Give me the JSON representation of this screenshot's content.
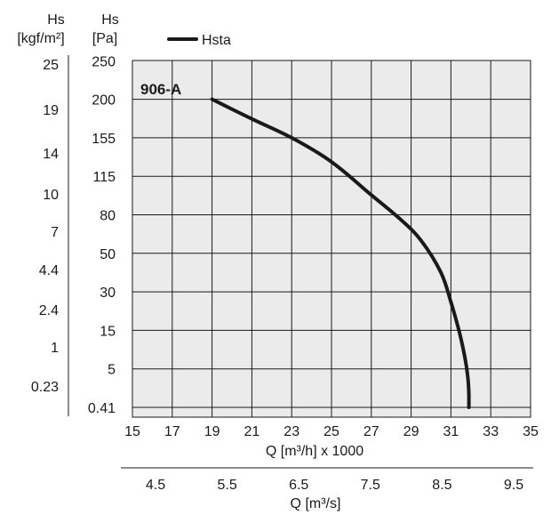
{
  "chart_data": {
    "type": "line",
    "model_label": "906-A",
    "x": {
      "label": "Q [m³/h] x 1000",
      "ticks": [
        15,
        17,
        19,
        21,
        23,
        25,
        27,
        29,
        31,
        33,
        35
      ],
      "range": [
        15,
        35
      ]
    },
    "x2": {
      "label": "Q [m³/s]",
      "ticks": [
        "4.5",
        "5.5",
        "6.5",
        "7.5",
        "8.5",
        "9.5"
      ]
    },
    "y": {
      "title": "Hs",
      "unit": "[Pa]",
      "scale": "nonuniform",
      "ticks": [
        "250",
        "200",
        "155",
        "115",
        "80",
        "50",
        "30",
        "15",
        "5",
        "0.41"
      ]
    },
    "y2": {
      "title": "Hs",
      "unit": "[kgf/m²]",
      "ticks": [
        "25",
        "19",
        "14",
        "10",
        "7",
        "4.4",
        "2.4",
        "1",
        "0.23"
      ]
    },
    "grid": true,
    "legend_position": "top-left",
    "series": [
      {
        "name": "Hsta",
        "color": "#1a1a1a",
        "x": [
          19.0,
          21.0,
          23.0,
          25.0,
          27.0,
          28.5,
          29.5,
          30.5,
          31.0,
          31.4,
          31.7,
          31.85,
          31.9,
          31.9
        ],
        "y": [
          200,
          177,
          155,
          130,
          98,
          76,
          60,
          40,
          26,
          15,
          8,
          4,
          2,
          0.41
        ]
      }
    ]
  }
}
